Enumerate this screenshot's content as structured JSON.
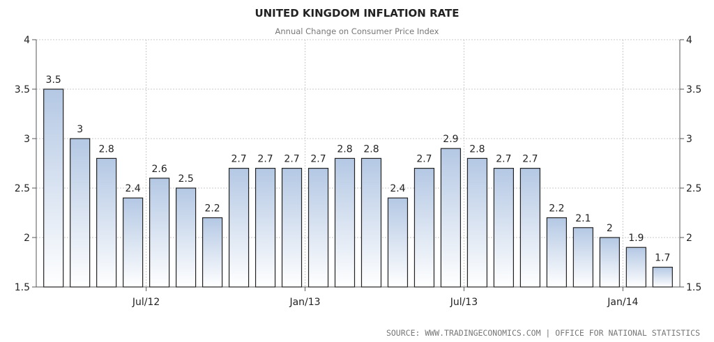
{
  "chart_data": {
    "type": "bar",
    "title": "UNITED KINGDOM INFLATION RATE",
    "subtitle": "Annual Change on Consumer Price Index",
    "values": [
      3.5,
      3.0,
      2.8,
      2.4,
      2.6,
      2.5,
      2.2,
      2.7,
      2.7,
      2.7,
      2.7,
      2.8,
      2.8,
      2.4,
      2.7,
      2.9,
      2.8,
      2.7,
      2.7,
      2.2,
      2.1,
      2.0,
      1.9,
      1.7
    ],
    "value_labels": [
      "3.5",
      "3",
      "2.8",
      "2.4",
      "2.6",
      "2.5",
      "2.2",
      "2.7",
      "2.7",
      "2.7",
      "2.7",
      "2.8",
      "2.8",
      "2.4",
      "2.7",
      "2.9",
      "2.8",
      "2.7",
      "2.7",
      "2.2",
      "2.1",
      "2",
      "1.9",
      "1.7"
    ],
    "x_ticks": [
      {
        "label": "Jul/12",
        "index": 3.5
      },
      {
        "label": "Jan/13",
        "index": 9.5
      },
      {
        "label": "Jul/13",
        "index": 15.5
      },
      {
        "label": "Jan/14",
        "index": 21.5
      }
    ],
    "ylim": [
      1.5,
      4
    ],
    "y_ticks": [
      {
        "value": 1.5,
        "label": "1.5"
      },
      {
        "value": 2,
        "label": "2"
      },
      {
        "value": 2.5,
        "label": "2.5"
      },
      {
        "value": 3,
        "label": "3"
      },
      {
        "value": 3.5,
        "label": "3.5"
      },
      {
        "value": 4,
        "label": "4"
      }
    ],
    "grid": true,
    "source": "SOURCE: WWW.TRADINGECONOMICS.COM | OFFICE FOR NATIONAL STATISTICS",
    "colors": {
      "bar_top": "#b4c8e4",
      "bar_bottom": "#ffffff",
      "bar_stroke": "#222222",
      "grid": "#c8c8c8",
      "axis": "#555555"
    }
  }
}
